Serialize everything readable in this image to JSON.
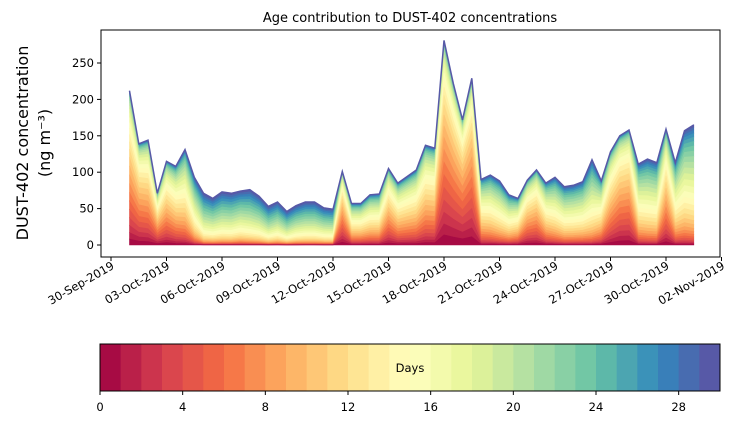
{
  "chart_data": {
    "type": "area",
    "title": "Age contribution to DUST-402 concentrations",
    "ylabel_line1": "DUST-402 concentration",
    "ylabel_line2": "(ng m⁻³)",
    "xlabel": "",
    "x_start": "2019-10-01",
    "x_step_hours": 12,
    "ylim": [
      -15,
      295
    ],
    "y_ticks": [
      "0",
      "50",
      "100",
      "150",
      "200",
      "250"
    ],
    "x_ticks": [
      "30-Sep-2019",
      "03-Oct-2019",
      "06-Oct-2019",
      "09-Oct-2019",
      "12-Oct-2019",
      "15-Oct-2019",
      "18-Oct-2019",
      "21-Oct-2019",
      "24-Oct-2019",
      "27-Oct-2019",
      "30-Oct-2019",
      "02-Nov-2019"
    ],
    "total": [
      212,
      139,
      144,
      71,
      115,
      108,
      131,
      93,
      71,
      64,
      73,
      71,
      74,
      76,
      67,
      53,
      59,
      46,
      54,
      59,
      59,
      51,
      49,
      101,
      57,
      57,
      69,
      70,
      105,
      85,
      94,
      103,
      137,
      133,
      281,
      222,
      172,
      229,
      90,
      96,
      88,
      69,
      64,
      89,
      103,
      85,
      93,
      80,
      82,
      87,
      117,
      88,
      128,
      150,
      158,
      111,
      118,
      113,
      159,
      113,
      157,
      165
    ],
    "dominant_age_days": [
      8,
      8,
      9,
      10,
      10,
      12,
      14,
      18,
      22,
      22,
      22,
      22,
      21,
      22,
      22,
      23,
      22,
      23,
      22,
      22,
      22,
      22,
      22,
      8,
      14,
      14,
      14,
      14,
      10,
      12,
      12,
      12,
      11,
      11,
      6,
      6,
      6,
      6,
      14,
      15,
      16,
      16,
      14,
      10,
      10,
      14,
      16,
      17,
      17,
      17,
      18,
      14,
      10,
      8,
      8,
      16,
      17,
      17,
      10,
      16,
      17,
      18
    ],
    "colorbar": {
      "label": "Days",
      "range": [
        0,
        30
      ],
      "bins": 30,
      "colormap": "Spectral",
      "ticks": [
        "0",
        "4",
        "8",
        "12",
        "16",
        "20",
        "24",
        "28"
      ]
    }
  }
}
